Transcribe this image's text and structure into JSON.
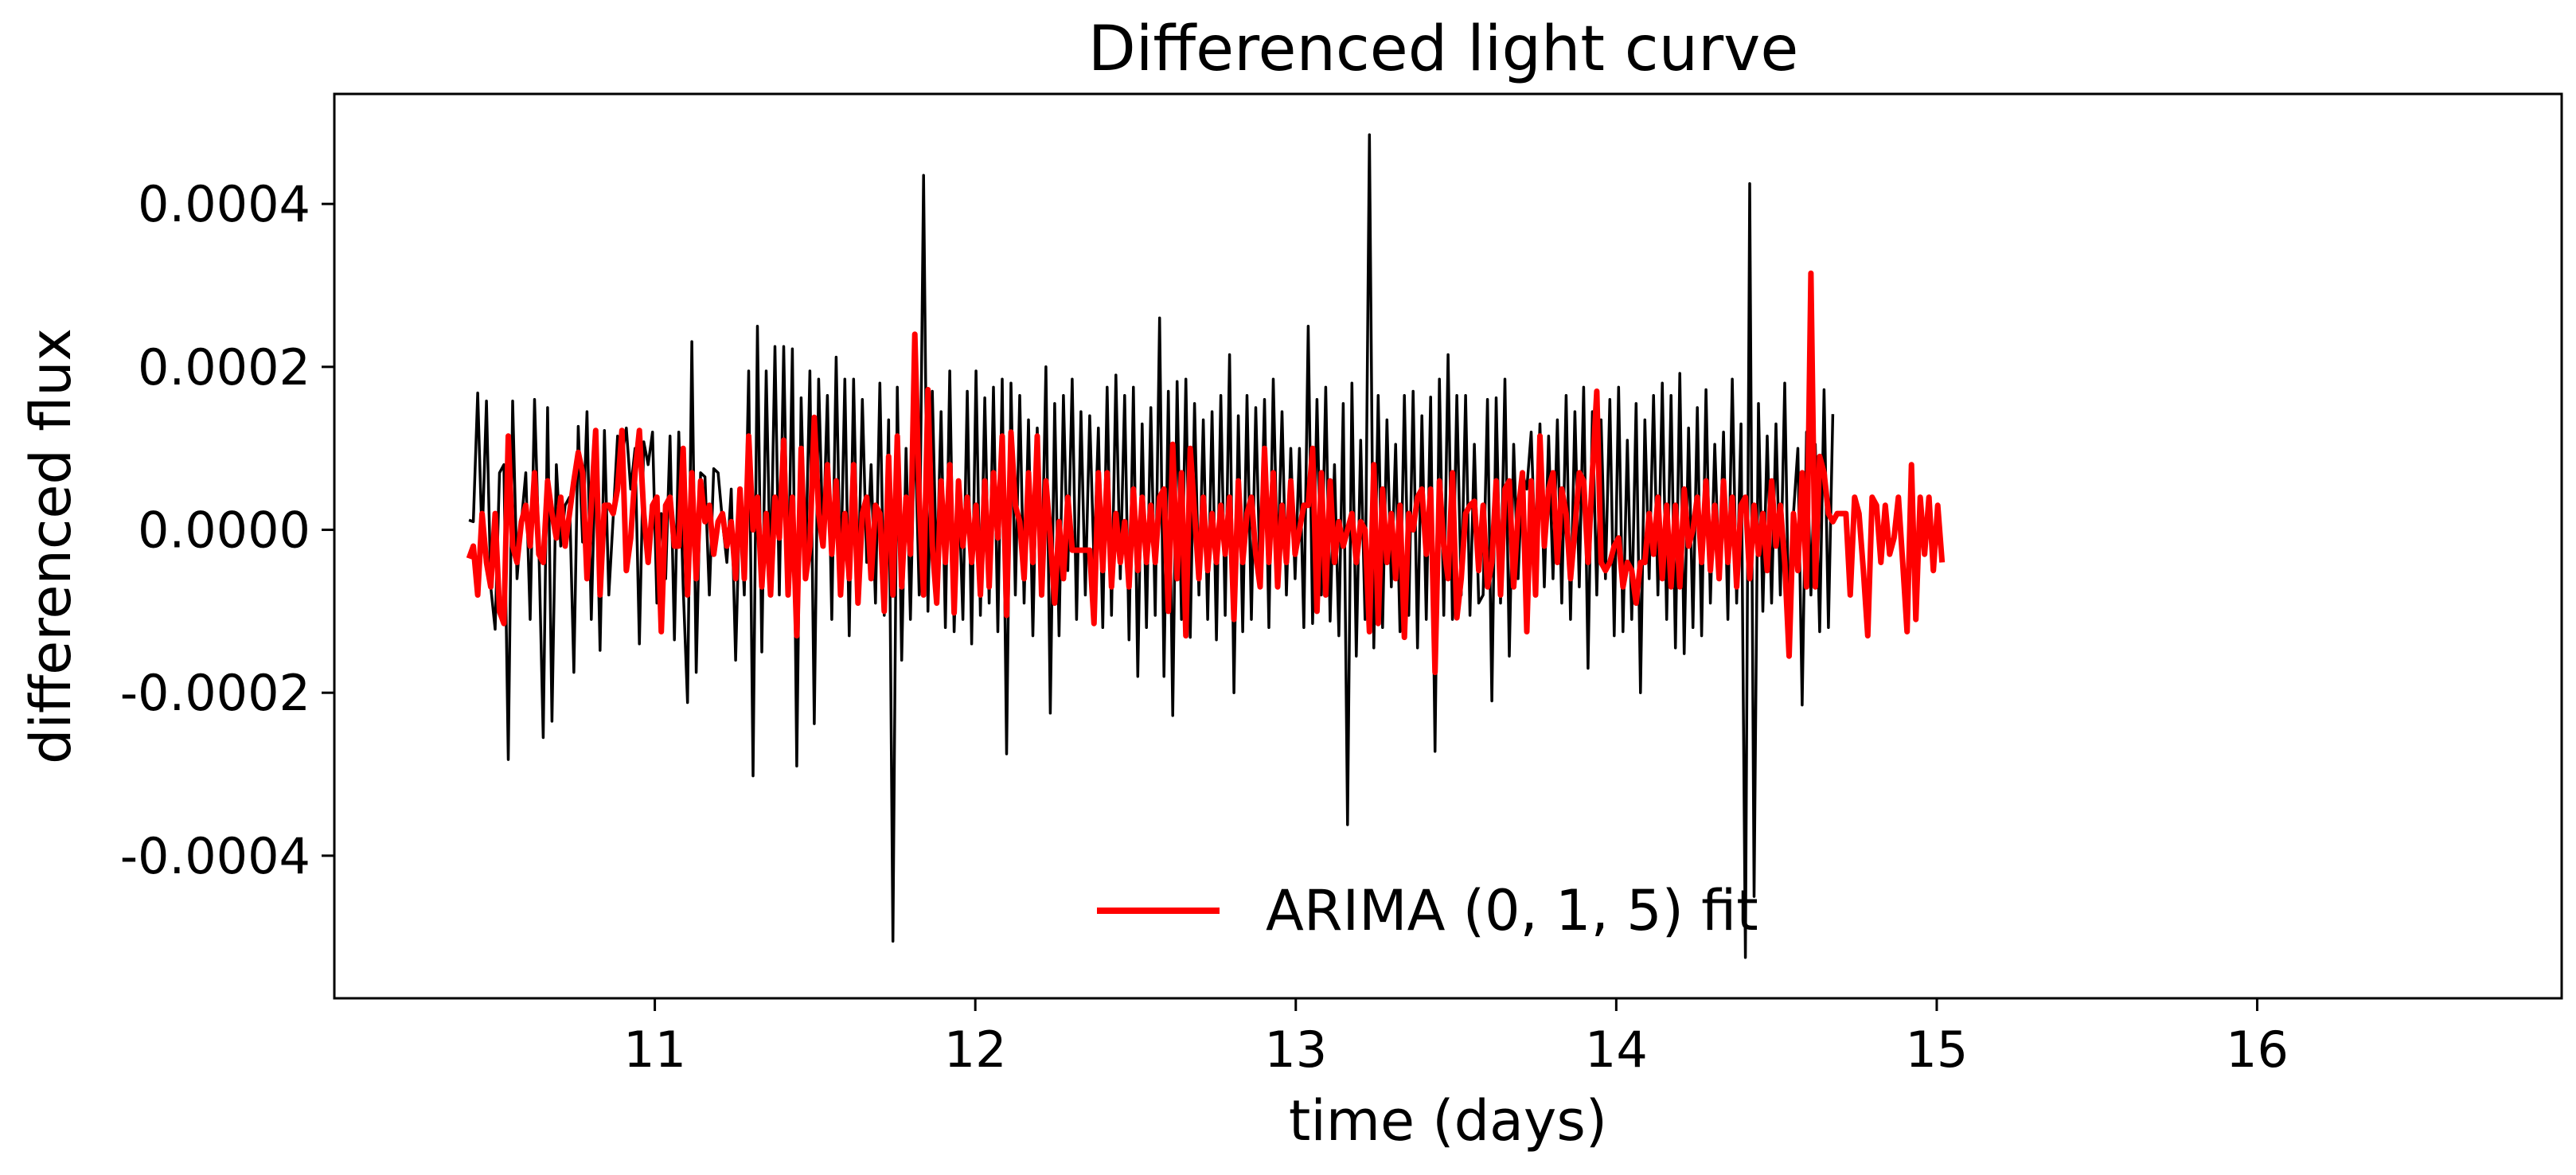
{
  "chart_data": {
    "type": "line",
    "title": "Differenced light curve",
    "xlabel": "time (days)",
    "ylabel": "differenced flux",
    "xlim": [
      10.0,
      16.95
    ],
    "ylim": [
      -0.000575,
      0.000535
    ],
    "x_ticks": [
      11,
      12,
      13,
      14,
      15,
      16
    ],
    "x_tick_labels": [
      "11",
      "12",
      "13",
      "14",
      "15",
      "16"
    ],
    "y_ticks": [
      -0.0004,
      -0.0002,
      0.0,
      0.0002,
      0.0004
    ],
    "y_tick_labels": [
      "-0.0004",
      "-0.0002",
      "0.0000",
      "0.0002",
      "0.0004"
    ],
    "grid": false,
    "legend": {
      "position": "lower center",
      "frame": false
    },
    "colors": {
      "data": "#000000",
      "fit": "#ff0000"
    },
    "series": [
      {
        "key": "data",
        "x_start": 10.42,
        "x_step": 0.01364,
        "values": [
          1.2e-05,
          1e-05,
          0.000168,
          -1.5e-05,
          0.000158,
          -7e-05,
          -0.000122,
          7e-05,
          8e-05,
          -0.000282,
          0.000158,
          -6e-05,
          1e-05,
          7e-05,
          -0.00011,
          0.00016,
          -2e-05,
          -0.000255,
          0.00015,
          -0.000235,
          8e-05,
          -2e-05,
          3e-05,
          4e-05,
          -0.000175,
          0.000127,
          -1.5e-05,
          0.000145,
          -0.00011,
          0.0001,
          -0.000148,
          0.000122,
          -8e-05,
          1.5e-05,
          0.000115,
          9e-05,
          0.000125,
          5e-05,
          0.0001,
          -0.00014,
          0.000108,
          8e-05,
          0.00012,
          -9e-05,
          2e-05,
          -6e-05,
          0.000115,
          -0.000135,
          0.00012,
          -7e-05,
          -0.000212,
          0.000231,
          -0.000175,
          7e-05,
          6.5e-05,
          -8e-05,
          7.5e-05,
          7e-05,
          1e-05,
          -4e-05,
          5e-05,
          -0.00016,
          4.5e-05,
          -8e-05,
          0.000195,
          -0.000302,
          0.00025,
          -0.00015,
          0.000195,
          -7e-05,
          0.000225,
          -8e-05,
          0.000225,
          -8e-05,
          0.000222,
          -0.00029,
          0.000162,
          -5e-05,
          0.000195,
          -0.000238,
          0.000185,
          -2e-05,
          0.000165,
          -0.00011,
          0.000212,
          -7e-05,
          0.000185,
          -0.00013,
          0.000185,
          -8e-05,
          0.00016,
          -4e-05,
          8e-05,
          -9e-05,
          0.00018,
          -0.000105,
          0.000135,
          -0.000505,
          0.000175,
          -0.00016,
          0.0001,
          -0.00011,
          0.000135,
          -8e-05,
          0.000435,
          -0.0001,
          0.00017,
          -6e-05,
          0.000145,
          -0.00012,
          0.000195,
          -0.000125,
          6e-05,
          -0.00011,
          0.00017,
          -0.00014,
          0.000195,
          -0.000105,
          0.000162,
          -9e-05,
          0.000175,
          -0.000125,
          0.000185,
          -0.000275,
          0.00018,
          -8e-05,
          0.000165,
          -9e-05,
          0.000135,
          -0.00013,
          0.000125,
          -7e-05,
          0.0002,
          -0.000225,
          0.000155,
          -0.00013,
          0.000165,
          -5e-05,
          0.000185,
          -0.00011,
          0.000145,
          -8e-05,
          0.00014,
          -4e-05,
          0.000125,
          -0.00012,
          0.000175,
          -0.000105,
          0.00019,
          -6e-05,
          0.000165,
          -0.000135,
          0.000175,
          -0.00018,
          0.00013,
          -0.00012,
          0.00015,
          -0.000105,
          0.00026,
          -0.00018,
          0.00017,
          -0.000228,
          0.000182,
          -0.00011,
          0.000185,
          -0.000132,
          0.000155,
          -8e-05,
          0.000135,
          -0.00011,
          0.000145,
          -0.000135,
          0.000165,
          -0.000105,
          0.000215,
          -0.0002,
          0.00014,
          -0.000125,
          0.000165,
          -0.00011,
          0.00015,
          -6e-05,
          0.00016,
          -0.00012,
          0.000185,
          -5e-05,
          0.000145,
          -8e-05,
          0.0001,
          -6e-05,
          0.0001,
          -0.00012,
          0.00025,
          -0.000115,
          0.00016,
          -8e-05,
          0.000175,
          -0.000112,
          8e-05,
          -0.00013,
          0.000155,
          -0.000362,
          0.00018,
          -0.000155,
          0.00011,
          -0.00011,
          0.000485,
          -0.000145,
          0.000165,
          -0.00012,
          0.000135,
          -7e-05,
          0.000105,
          -0.000125,
          0.000165,
          -0.000105,
          0.00017,
          -0.000145,
          0.00014,
          -0.00011,
          0.000163,
          -0.000272,
          0.000185,
          -0.000105,
          0.000215,
          -0.00011,
          0.000165,
          -8e-05,
          0.000165,
          -0.000105,
          0.000105,
          -9e-05,
          -8e-05,
          0.00016,
          -0.00021,
          0.000162,
          -9e-05,
          0.000185,
          -0.000155,
          0.000105,
          -6e-05,
          7e-05,
          5e-05,
          0.00012,
          -4e-05,
          0.00013,
          -7e-05,
          0.000115,
          -6e-05,
          0.000135,
          -9e-05,
          0.000165,
          -0.00011,
          0.000145,
          -7e-05,
          0.000175,
          -0.00017,
          0.000145,
          -8e-05,
          0.000135,
          -6e-05,
          0.00016,
          -0.00013,
          0.000175,
          -0.000125,
          0.00011,
          -0.00011,
          0.000155,
          -0.0002,
          0.000135,
          -6e-05,
          0.000165,
          -8e-05,
          0.00018,
          -0.00011,
          0.000165,
          -0.000145,
          0.000192,
          -0.000152,
          0.000125,
          -0.00012,
          0.00015,
          -0.00013,
          0.000172,
          -9e-05,
          0.000105,
          -6e-05,
          0.00012,
          -0.00011,
          0.000185,
          -9e-05,
          0.00013,
          -0.000525,
          0.000425,
          -0.00045,
          0.000155,
          -0.0001,
          0.000115,
          -9e-05,
          0.00013,
          -8e-05,
          0.00018,
          -0.00014,
          2e-05,
          0.0001,
          -0.000215,
          0.00012,
          -8e-05,
          0.000105,
          -0.000125,
          0.000172,
          -0.00012,
          0.000142
        ]
      },
      {
        "key": "fit",
        "name": "ARIMA (0, 1, 5) fit",
        "x_start": 10.42,
        "x_step": 0.01364,
        "values": [
          -3.5e-05,
          -2e-05,
          -8e-05,
          2e-05,
          -4e-05,
          -7e-05,
          2e-05,
          -0.0001,
          -0.000115,
          0.000115,
          -2e-05,
          -4e-05,
          1e-05,
          3e-05,
          -2e-05,
          7e-05,
          -3e-05,
          -4e-05,
          6e-05,
          2e-05,
          -1e-05,
          4e-05,
          -2e-05,
          2e-05,
          6e-05,
          9.5e-05,
          7e-05,
          -6e-05,
          3e-05,
          0.000122,
          -8e-05,
          3e-05,
          3e-05,
          2e-05,
          5e-05,
          0.000122,
          -5e-05,
          -1e-05,
          7e-05,
          0.000122,
          2e-05,
          -4e-05,
          3e-05,
          4e-05,
          -0.000125,
          3e-05,
          4e-05,
          -2e-05,
          -2e-05,
          0.0001,
          -8e-05,
          7e-05,
          -6e-05,
          6e-05,
          1e-05,
          3e-05,
          -3e-05,
          1e-05,
          2e-05,
          -2e-05,
          1e-05,
          -6e-05,
          5e-05,
          -6e-05,
          0.000115,
          0.0,
          4e-05,
          -7e-05,
          2e-05,
          -8e-05,
          4e-05,
          -1e-05,
          0.00011,
          -8e-05,
          4e-05,
          -0.00013,
          0.0001,
          -6e-05,
          -2e-05,
          0.000138,
          2e-05,
          -2e-05,
          8e-05,
          -3e-05,
          6e-05,
          -8e-05,
          2e-05,
          -6e-05,
          8e-05,
          -9e-05,
          2e-05,
          4e-05,
          -6e-05,
          3e-05,
          2e-05,
          -0.0001,
          9e-05,
          -8e-05,
          0.000115,
          -7e-05,
          4e-05,
          -3e-05,
          0.00024,
          4e-05,
          -8e-05,
          0.000172,
          -2e-05,
          -9e-05,
          6e-05,
          -4e-05,
          8e-05,
          -0.000102,
          6e-05,
          -2e-05,
          4e-05,
          -4e-05,
          3e-05,
          -8e-05,
          6e-05,
          -7e-05,
          7e-05,
          -1e-05,
          0.000115,
          -0.000105,
          0.00012,
          3e-05,
          1e-05,
          -6e-05,
          7e-05,
          -4e-05,
          0.000115,
          -8e-05,
          6e-05,
          -1e-05,
          -9e-05,
          1e-05,
          -6e-05,
          4e-05,
          -2.5e-05,
          -2.5e-05,
          -2.5e-05,
          -2.5e-05,
          -2.5e-05,
          -0.000115,
          7e-05,
          -5e-05,
          7e-05,
          -7e-05,
          2e-05,
          -4e-05,
          1e-05,
          -7e-05,
          5e-05,
          -5e-05,
          4e-05,
          -4e-05,
          3e-05,
          -4e-05,
          4e-05,
          5e-05,
          -0.0001,
          0.000105,
          -6e-05,
          7e-05,
          -0.00013,
          0.0001,
          2e-05,
          -6e-05,
          4e-05,
          -5e-05,
          2e-05,
          -4e-05,
          3e-05,
          -3e-05,
          4e-05,
          -0.00011,
          6e-05,
          -4e-05,
          2e-05,
          4e-05,
          -3e-05,
          -7e-05,
          0.0001,
          -4e-05,
          7e-05,
          -7e-05,
          3e-05,
          -4e-05,
          6e-05,
          -3e-05,
          0.0,
          3e-05,
          3e-05,
          0.0001,
          -0.0001,
          7e-05,
          -8e-05,
          6e-05,
          -4e-05,
          1e-05,
          -2e-05,
          0.0,
          2e-05,
          -4e-05,
          1e-05,
          0.0,
          -0.000125,
          8e-05,
          -0.000115,
          5e-05,
          -4e-05,
          2e-05,
          -6e-05,
          3e-05,
          -0.000132,
          2e-05,
          0.0,
          4e-05,
          5e-05,
          -3e-05,
          5e-05,
          -0.000175,
          6e-05,
          -2e-05,
          -6e-05,
          7e-05,
          -0.000108,
          -6e-05,
          2e-05,
          3e-05,
          3.5e-05,
          -5e-05,
          3e-05,
          -7e-05,
          -4e-05,
          6e-05,
          -8e-05,
          5e-05,
          6e-05,
          -7e-05,
          2e-05,
          7e-05,
          -0.000125,
          6e-05,
          -8e-05,
          0.000115,
          -2e-05,
          5e-05,
          7e-05,
          -4e-05,
          5e-05,
          2e-05,
          -6e-05,
          0.0,
          7e-05,
          6e-05,
          -4e-05,
          7e-05,
          0.00017,
          -4e-05,
          -5e-05,
          -4e-05,
          -2e-05,
          -1e-05,
          -7e-05,
          -4e-05,
          -5e-05,
          -9e-05,
          -4e-05,
          -4e-05,
          2e-05,
          -3e-05,
          4e-05,
          -6e-05,
          3e-05,
          -7e-05,
          3e-05,
          -7e-05,
          5e-05,
          -2e-05,
          0.0,
          4e-05,
          -4e-05,
          6e-05,
          -5e-05,
          3e-05,
          -6e-05,
          6e-05,
          -4e-05,
          4e-05,
          -7e-05,
          3e-05,
          4e-05,
          -6e-05,
          3e-05,
          -3e-05,
          2e-05,
          -5e-05,
          6e-05,
          -2e-05,
          3e-05,
          -4e-05,
          -0.000155,
          2e-05,
          -5e-05,
          7e-05,
          -7e-05,
          0.000315,
          -7e-05,
          9e-05,
          7e-05,
          2e-05,
          1e-05,
          2e-05,
          2e-05,
          2e-05,
          -8e-05,
          4e-05,
          2e-05,
          -5e-05,
          -0.00013,
          4e-05,
          3e-05,
          -4e-05,
          3e-05,
          -3e-05,
          -1e-05,
          4e-05,
          -4e-05,
          -0.000125,
          8e-05,
          -0.00011,
          4e-05,
          -3e-05,
          4e-05,
          -5e-05,
          3e-05,
          -4e-05
        ]
      }
    ]
  }
}
